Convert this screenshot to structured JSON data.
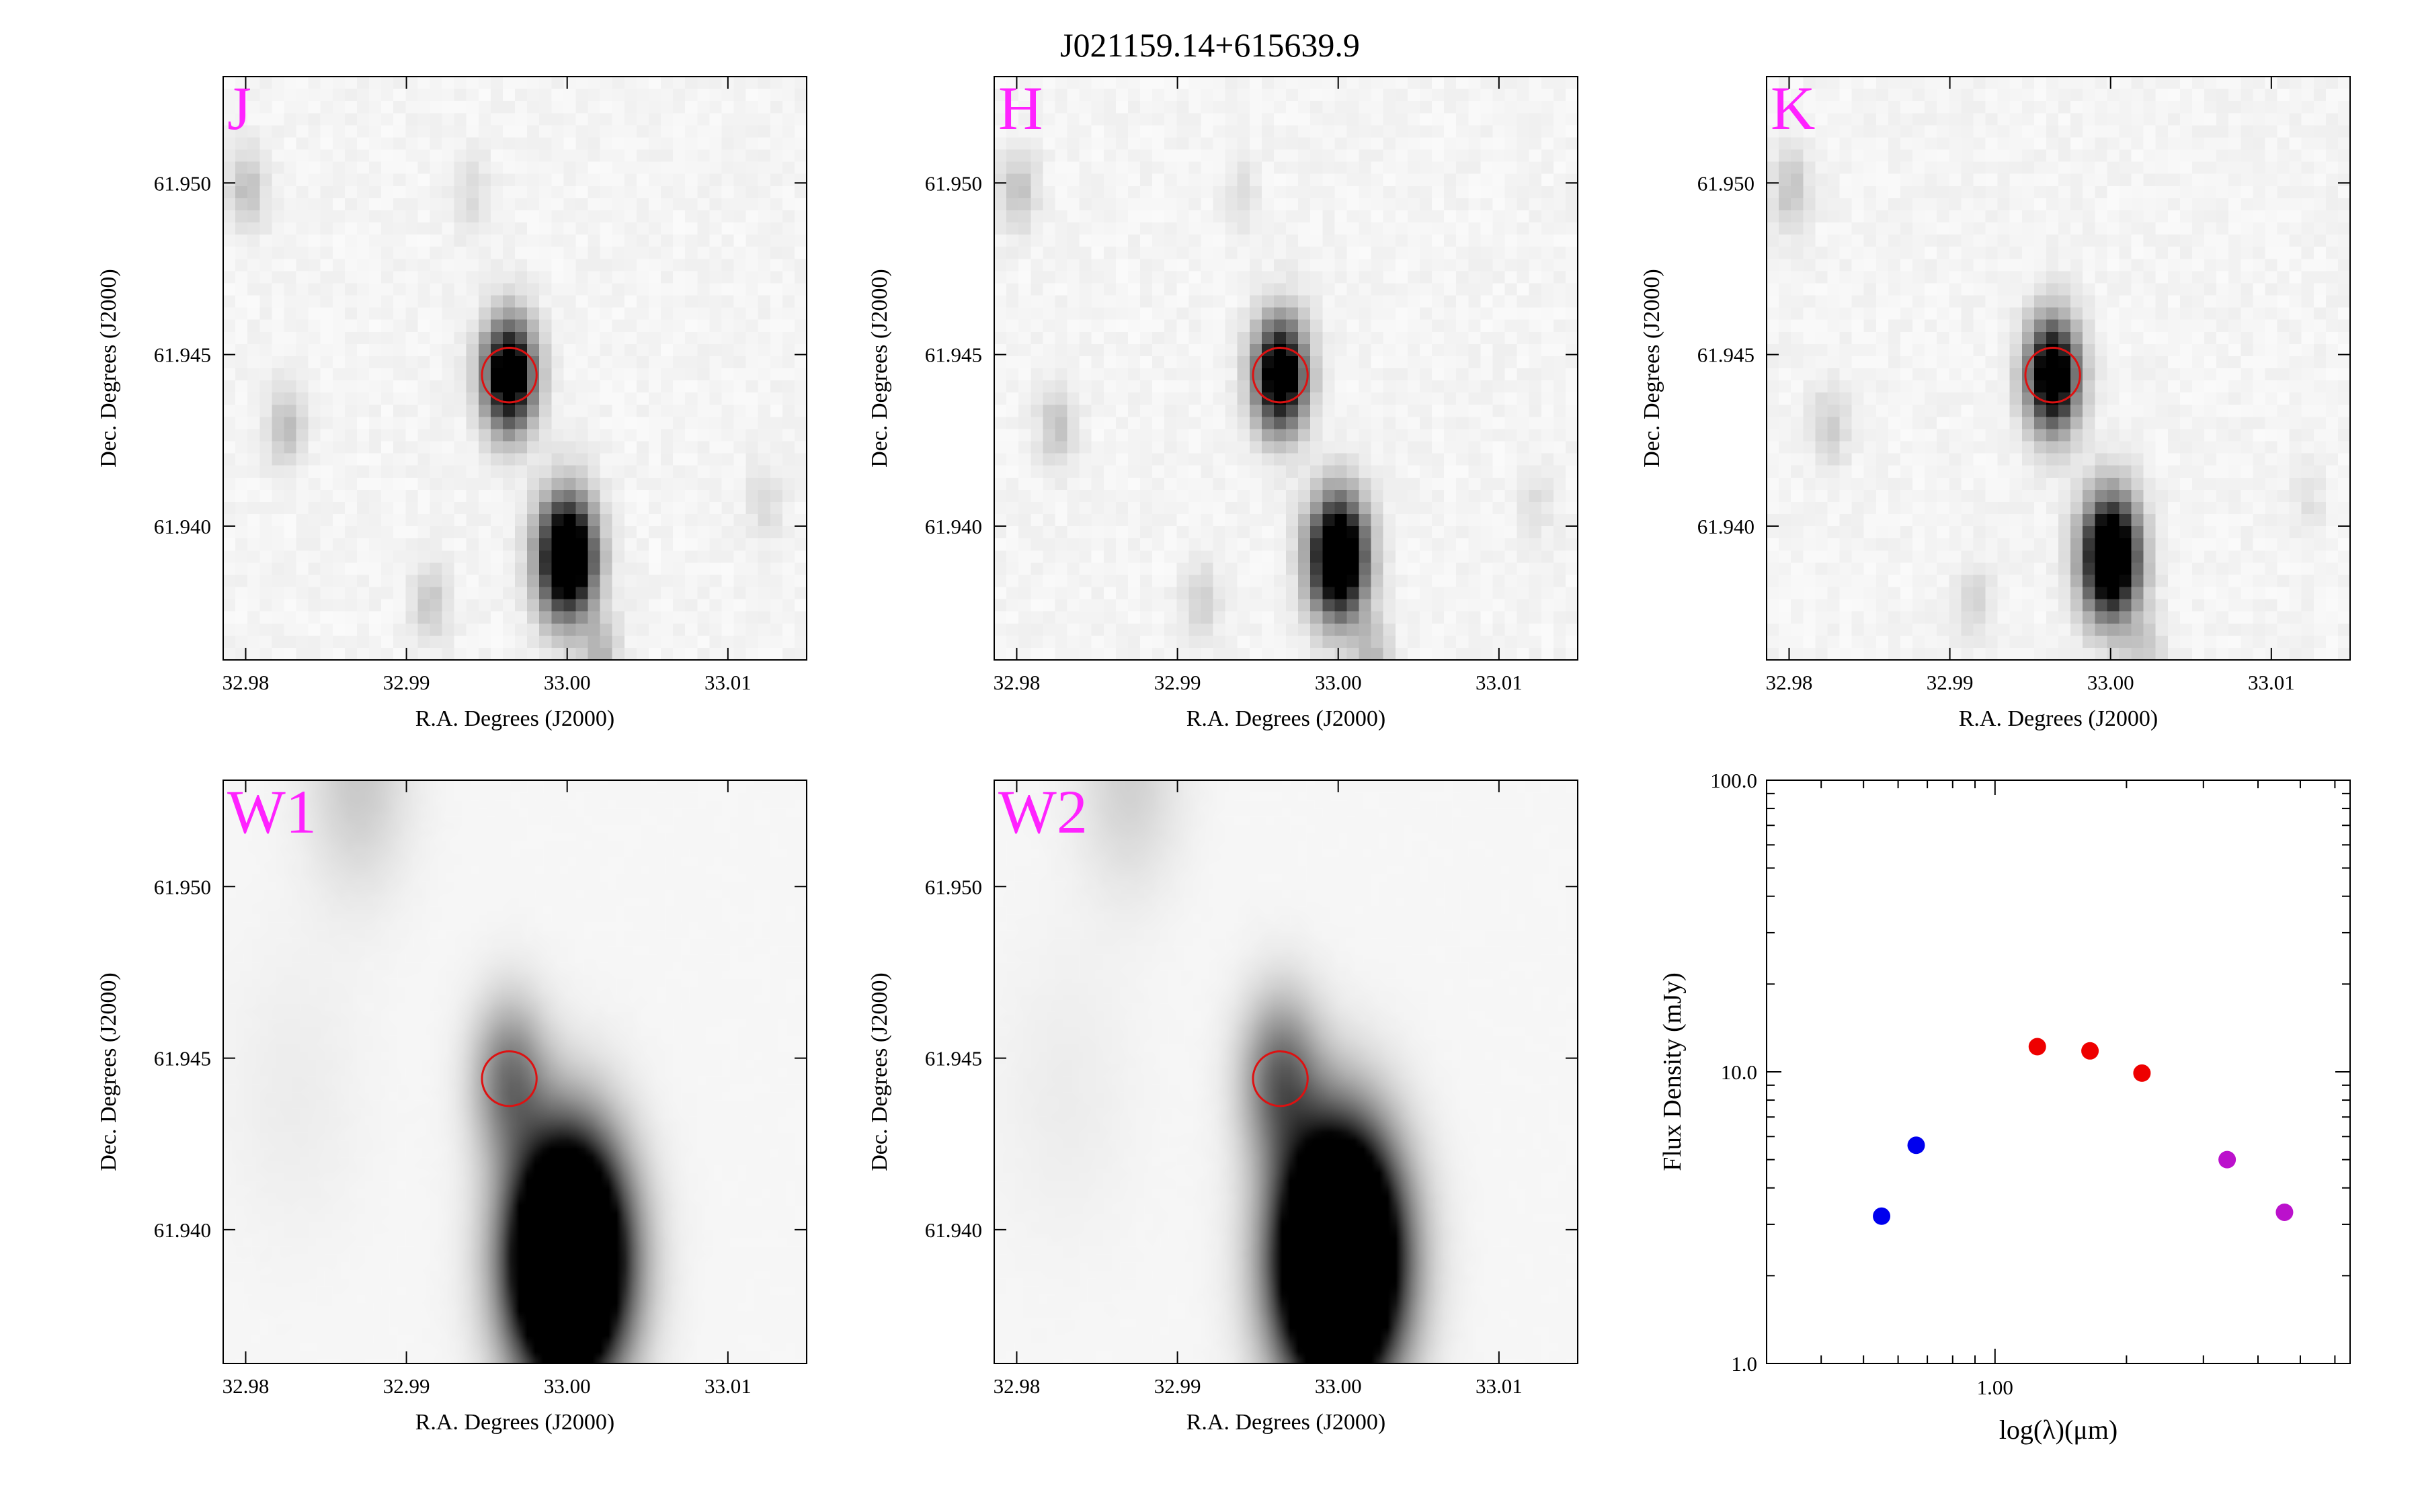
{
  "figure": {
    "title": "J021159.14+615639.9"
  },
  "colors": {
    "band_label": "#ff22ff",
    "circle": "#dd1111",
    "sed_blue": "#0000ee",
    "sed_red": "#ee0000",
    "sed_purple": "#bb11cc"
  },
  "image_axes": {
    "xlabel": "R.A. Degrees (J2000)",
    "ylabel": "Dec. Degrees (J2000)",
    "xlim": [
      32.9786,
      33.0149
    ],
    "ylim": [
      61.9361,
      61.9531
    ],
    "xticks": [
      {
        "value": 32.98,
        "label": "32.98"
      },
      {
        "value": 32.99,
        "label": "32.99"
      },
      {
        "value": 33.0,
        "label": "33.00"
      },
      {
        "value": 33.01,
        "label": "33.01"
      }
    ],
    "yticks": [
      {
        "value": 61.94,
        "label": "61.940"
      },
      {
        "value": 61.945,
        "label": "61.945"
      },
      {
        "value": 61.95,
        "label": "61.950"
      }
    ],
    "target": {
      "ra": 32.9964,
      "dec": 61.9444,
      "radius_deg": 0.0017
    }
  },
  "chart_data": [
    {
      "type": "heatmap",
      "band": "J",
      "smooth": false,
      "sources": [
        {
          "ra": 32.9964,
          "dec": 61.9444,
          "amp": 1.3,
          "sigma": 0.0011
        },
        {
          "ra": 33.0,
          "dec": 61.9391,
          "amp": 1.5,
          "sigma": 0.0012
        },
        {
          "ra": 32.9801,
          "dec": 61.9498,
          "amp": 0.22,
          "sigma": 0.0008
        },
        {
          "ra": 32.9825,
          "dec": 61.9429,
          "amp": 0.22,
          "sigma": 0.0008
        },
        {
          "ra": 32.9915,
          "dec": 61.9378,
          "amp": 0.18,
          "sigma": 0.0008
        },
        {
          "ra": 33.0021,
          "dec": 61.9362,
          "amp": 0.24,
          "sigma": 0.0008
        },
        {
          "ra": 32.994,
          "dec": 61.9497,
          "amp": 0.1,
          "sigma": 0.0008
        },
        {
          "ra": 33.0123,
          "dec": 61.9407,
          "amp": 0.1,
          "sigma": 0.0008
        }
      ]
    },
    {
      "type": "heatmap",
      "band": "H",
      "smooth": false,
      "sources": [
        {
          "ra": 32.9964,
          "dec": 61.9444,
          "amp": 1.3,
          "sigma": 0.0011
        },
        {
          "ra": 33.0,
          "dec": 61.9391,
          "amp": 1.5,
          "sigma": 0.0012
        },
        {
          "ra": 32.9801,
          "dec": 61.9498,
          "amp": 0.2,
          "sigma": 0.0008
        },
        {
          "ra": 32.9825,
          "dec": 61.9429,
          "amp": 0.2,
          "sigma": 0.0008
        },
        {
          "ra": 32.9915,
          "dec": 61.9378,
          "amp": 0.14,
          "sigma": 0.0008
        },
        {
          "ra": 33.0021,
          "dec": 61.9362,
          "amp": 0.22,
          "sigma": 0.0008
        },
        {
          "ra": 32.994,
          "dec": 61.9497,
          "amp": 0.08,
          "sigma": 0.0008
        },
        {
          "ra": 33.0123,
          "dec": 61.9407,
          "amp": 0.08,
          "sigma": 0.0008
        }
      ]
    },
    {
      "type": "heatmap",
      "band": "K",
      "smooth": false,
      "sources": [
        {
          "ra": 32.9964,
          "dec": 61.9444,
          "amp": 1.3,
          "sigma": 0.0011
        },
        {
          "ra": 33.0,
          "dec": 61.9391,
          "amp": 1.5,
          "sigma": 0.0012
        },
        {
          "ra": 32.9801,
          "dec": 61.9498,
          "amp": 0.2,
          "sigma": 0.0008
        },
        {
          "ra": 32.9825,
          "dec": 61.9429,
          "amp": 0.16,
          "sigma": 0.0008
        },
        {
          "ra": 32.9915,
          "dec": 61.9378,
          "amp": 0.12,
          "sigma": 0.0008
        },
        {
          "ra": 33.0021,
          "dec": 61.9362,
          "amp": 0.18,
          "sigma": 0.0008
        },
        {
          "ra": 33.0123,
          "dec": 61.9407,
          "amp": 0.07,
          "sigma": 0.0008
        }
      ]
    },
    {
      "type": "heatmap",
      "band": "W1",
      "smooth": true,
      "sources": [
        {
          "ra": 32.9964,
          "dec": 61.9444,
          "amp": 0.5,
          "sigma": 0.0016
        },
        {
          "ra": 33.0,
          "dec": 61.9391,
          "amp": 2.6,
          "sigma": 0.0024
        },
        {
          "ra": 32.987,
          "dec": 61.9531,
          "amp": 0.18,
          "sigma": 0.0022
        },
        {
          "ra": 32.983,
          "dec": 61.944,
          "amp": 0.04,
          "sigma": 0.003
        }
      ]
    },
    {
      "type": "heatmap",
      "band": "W2",
      "smooth": true,
      "sources": [
        {
          "ra": 32.9964,
          "dec": 61.9444,
          "amp": 0.55,
          "sigma": 0.0017
        },
        {
          "ra": 33.0,
          "dec": 61.9391,
          "amp": 2.8,
          "sigma": 0.0025
        },
        {
          "ra": 32.987,
          "dec": 61.9531,
          "amp": 0.15,
          "sigma": 0.0022
        },
        {
          "ra": 32.983,
          "dec": 61.944,
          "amp": 0.04,
          "sigma": 0.003
        }
      ]
    },
    {
      "type": "scatter",
      "name": "sed",
      "xlabel": "log(λ)(μm)",
      "ylabel": "Flux Density (mJy)",
      "xscale": "log",
      "yscale": "log",
      "xlim": [
        0.3,
        6.5
      ],
      "ylim": [
        1.0,
        100.0
      ],
      "xticks": [
        {
          "value": 1.0,
          "label": "1.00"
        }
      ],
      "yticks": [
        {
          "value": 1.0,
          "label": "1.0"
        },
        {
          "value": 10.0,
          "label": "10.0"
        },
        {
          "value": 100.0,
          "label": "100.0"
        }
      ],
      "points": [
        {
          "x": 0.55,
          "y": 3.2,
          "color": "#0000ee"
        },
        {
          "x": 0.66,
          "y": 5.6,
          "color": "#0000ee"
        },
        {
          "x": 1.25,
          "y": 12.2,
          "color": "#ee0000"
        },
        {
          "x": 1.65,
          "y": 11.8,
          "color": "#ee0000"
        },
        {
          "x": 2.17,
          "y": 9.9,
          "color": "#ee0000"
        },
        {
          "x": 3.4,
          "y": 5.0,
          "color": "#bb11cc"
        },
        {
          "x": 4.6,
          "y": 3.3,
          "color": "#bb11cc"
        }
      ]
    }
  ]
}
